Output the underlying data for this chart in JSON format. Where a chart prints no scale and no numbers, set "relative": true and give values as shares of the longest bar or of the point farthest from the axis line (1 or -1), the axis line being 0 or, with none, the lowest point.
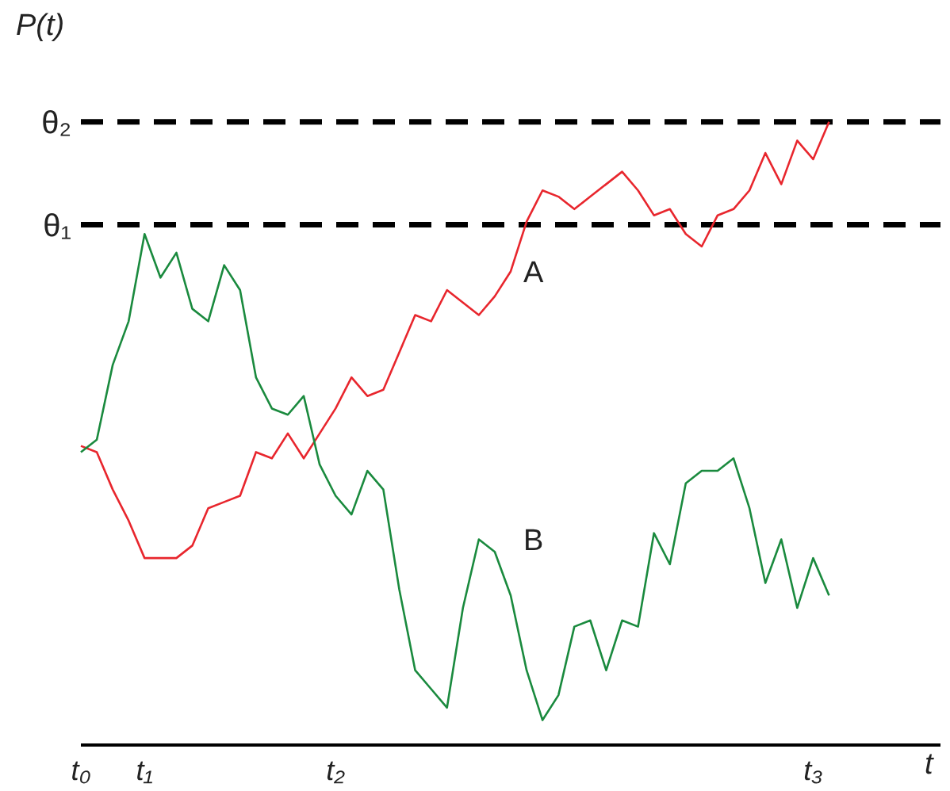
{
  "chart_data": {
    "type": "line",
    "relative": true,
    "xlabel": "t",
    "ylabel": "P(t)",
    "categories": [
      "t₀",
      null,
      null,
      null,
      "t₁",
      null,
      null,
      null,
      null,
      null,
      null,
      null,
      null,
      null,
      null,
      null,
      "t₂",
      null,
      null,
      null,
      null,
      null,
      null,
      null,
      null,
      null,
      null,
      null,
      null,
      null,
      null,
      null,
      null,
      null,
      null,
      null,
      null,
      null,
      null,
      null,
      null,
      null,
      null,
      null,
      null,
      null,
      "t₃",
      null,
      null,
      null,
      null,
      null,
      null,
      null,
      null
    ],
    "series": [
      {
        "name": "A",
        "color": "#e8262d",
        "values": [
          0.48,
          0.47,
          0.41,
          0.36,
          0.3,
          0.3,
          0.3,
          0.32,
          0.38,
          0.39,
          0.4,
          0.47,
          0.46,
          0.5,
          0.46,
          0.5,
          0.54,
          0.59,
          0.56,
          0.57,
          0.63,
          0.69,
          0.68,
          0.73,
          0.71,
          0.69,
          0.72,
          0.76,
          0.84,
          0.89,
          0.88,
          0.86,
          0.88,
          0.9,
          0.92,
          0.89,
          0.85,
          0.86,
          0.82,
          0.8,
          0.85,
          0.86,
          0.89,
          0.95,
          0.9,
          0.97,
          0.94,
          1,
          null,
          null,
          null,
          null,
          null,
          null,
          null
        ]
      },
      {
        "name": "B",
        "color": "#1a8a3e",
        "values": [
          0.47,
          0.49,
          0.61,
          0.68,
          0.82,
          0.75,
          0.79,
          0.7,
          0.68,
          0.77,
          0.73,
          0.59,
          0.54,
          0.53,
          0.56,
          0.45,
          0.4,
          0.37,
          0.44,
          0.41,
          0.25,
          0.12,
          0.09,
          0.06,
          0.22,
          0.33,
          0.31,
          0.24,
          0.12,
          0.04,
          0.08,
          0.19,
          0.2,
          0.12,
          0.2,
          0.19,
          0.34,
          0.29,
          0.42,
          0.44,
          0.44,
          0.46,
          0.38,
          0.26,
          0.33,
          0.22,
          0.3,
          0.24,
          null,
          null,
          null,
          null,
          null,
          null,
          null
        ]
      }
    ],
    "ref_lines": [
      {
        "axis": "y",
        "value": 1,
        "label": "θ₂",
        "color": "#000000",
        "line_style": "dashed"
      },
      {
        "axis": "y",
        "value": 0.835,
        "label": "θ₁",
        "color": "#000000",
        "line_style": "dashed"
      }
    ]
  }
}
